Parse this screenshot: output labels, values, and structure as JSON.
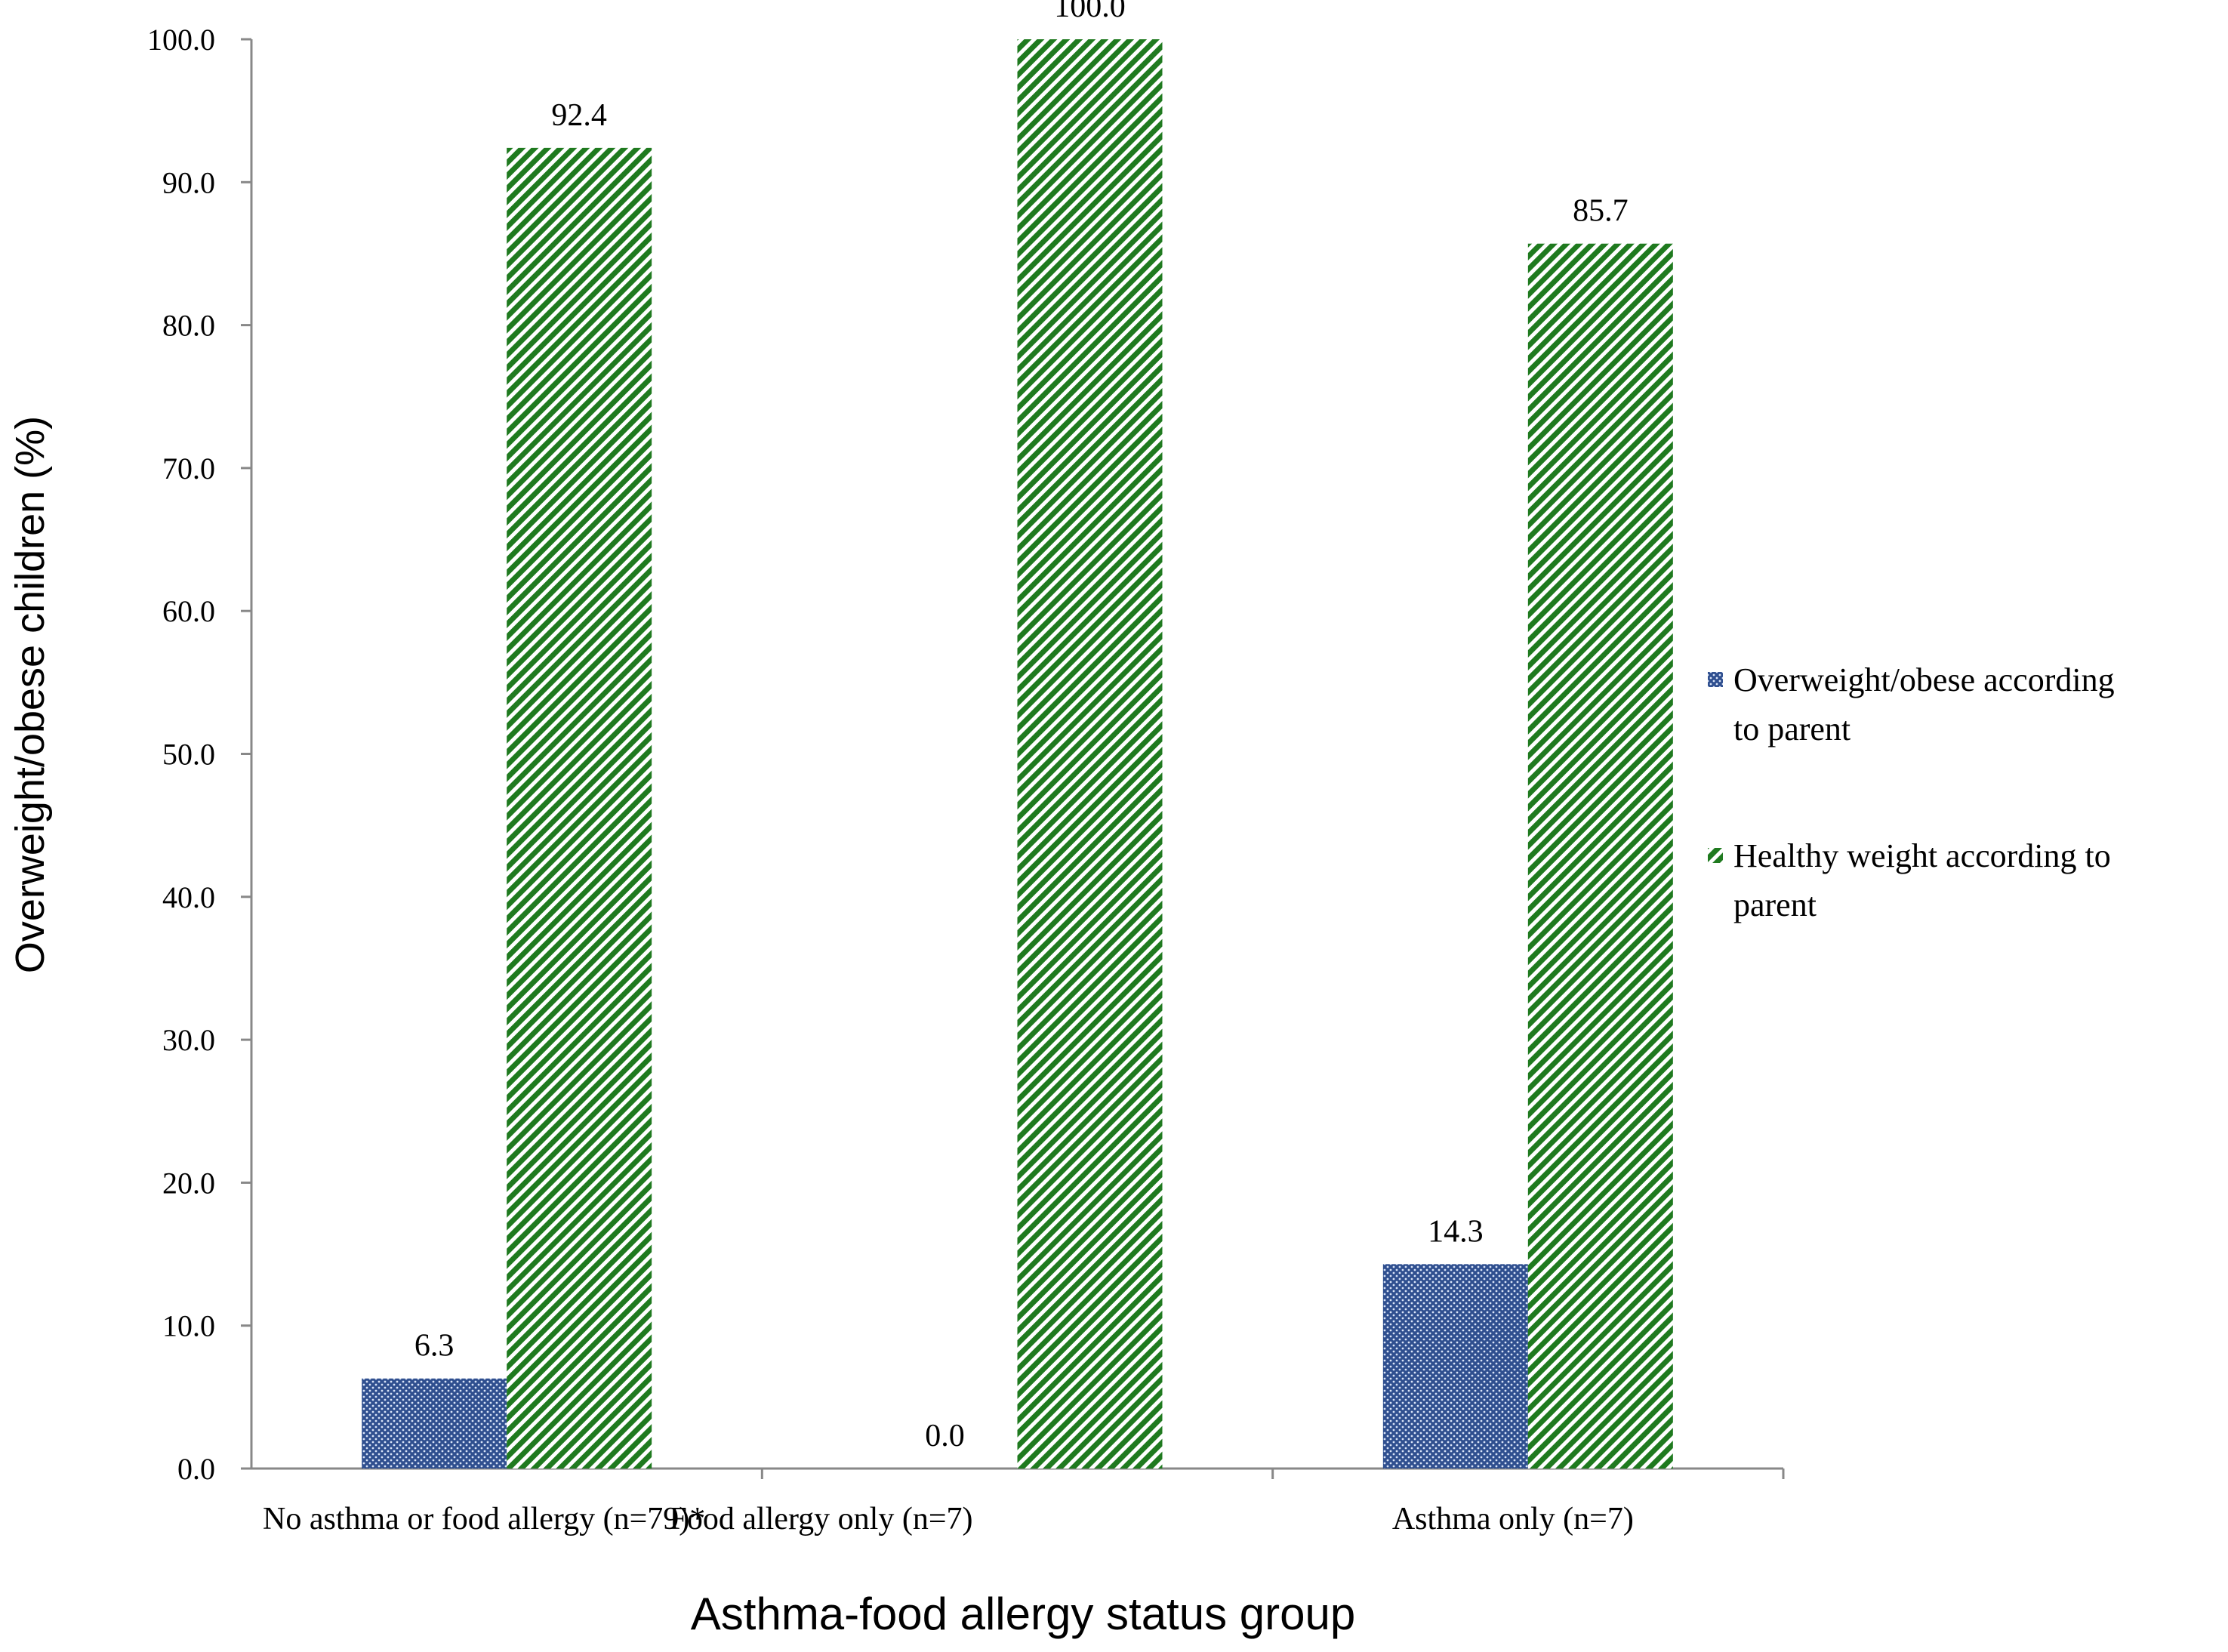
{
  "chart_data": {
    "type": "bar",
    "title": "",
    "xlabel": "Asthma-food allergy status group",
    "ylabel": "Overweight/obese children (%)",
    "ylim": [
      0,
      100
    ],
    "yticks": [
      "0.0",
      "10.0",
      "20.0",
      "30.0",
      "40.0",
      "50.0",
      "60.0",
      "70.0",
      "80.0",
      "90.0",
      "100.0"
    ],
    "categories": [
      "No asthma or food allergy (n=79)*",
      "Food allergy only (n=7)",
      "Asthma only (n=7)"
    ],
    "series": [
      {
        "name": "Overweight/obese according to parent",
        "legend_lines": [
          "Overweight/obese according",
          "to parent"
        ],
        "values": [
          6.3,
          0.0,
          14.3
        ],
        "labels": [
          "6.3",
          "0.0",
          "14.3"
        ],
        "color": "#2f4f8f",
        "pattern": "dotted-blue"
      },
      {
        "name": "Healthy weight according to parent",
        "legend_lines": [
          "Healthy weight according to",
          "parent"
        ],
        "values": [
          92.4,
          100.0,
          85.7
        ],
        "labels": [
          "92.4",
          "100.0",
          "85.7"
        ],
        "color": "#1f7a1f",
        "pattern": "diagonal-green"
      }
    ],
    "grid": false,
    "legend_position": "right"
  }
}
